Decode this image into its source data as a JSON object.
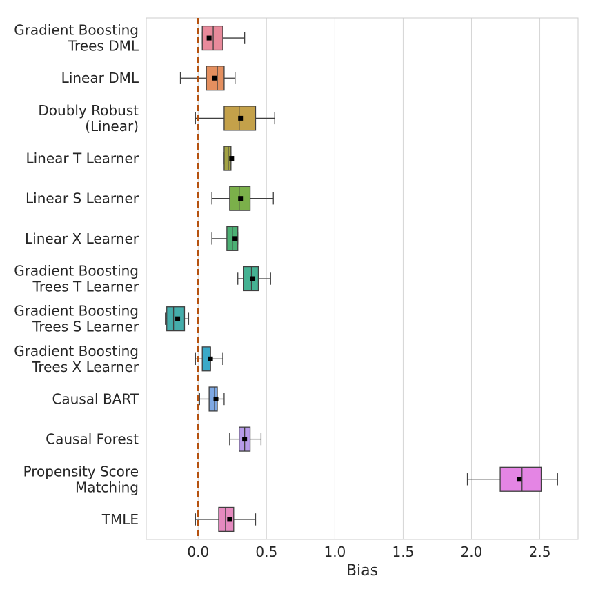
{
  "chart_data": {
    "type": "box",
    "orientation": "horizontal",
    "xlabel": "Bias",
    "ylabel": "",
    "xlim": [
      -0.38,
      2.78
    ],
    "xticks": [
      "0.0",
      "0.5",
      "1.0",
      "1.5",
      "2.0",
      "2.5"
    ],
    "xtick_values": [
      0.0,
      0.5,
      1.0,
      1.5,
      2.0,
      2.5
    ],
    "grid": "vertical",
    "reference_line": {
      "x": 0.0,
      "style": "dashed",
      "color": "#b5520f"
    },
    "series": [
      {
        "name": "Gradient Boosting Trees DML",
        "label_lines": [
          "Gradient Boosting",
          "Trees DML"
        ],
        "color": "#e88a9b",
        "whisker_low": 0.03,
        "q1": 0.03,
        "median": 0.11,
        "q3": 0.18,
        "whisker_high": 0.34,
        "mean": 0.08
      },
      {
        "name": "Linear DML",
        "label_lines": [
          "Linear DML"
        ],
        "color": "#e48f5f",
        "whisker_low": -0.13,
        "q1": 0.06,
        "median": 0.14,
        "q3": 0.19,
        "whisker_high": 0.27,
        "mean": 0.12
      },
      {
        "name": "Doubly Robust (Linear)",
        "label_lines": [
          "Doubly Robust",
          "(Linear)"
        ],
        "color": "#c4a14a",
        "whisker_low": -0.02,
        "q1": 0.19,
        "median": 0.3,
        "q3": 0.42,
        "whisker_high": 0.56,
        "mean": 0.31
      },
      {
        "name": "Linear T Learner",
        "label_lines": [
          "Linear T Learner"
        ],
        "color": "#a3a344",
        "whisker_low": 0.19,
        "q1": 0.19,
        "median": 0.22,
        "q3": 0.24,
        "whisker_high": 0.24,
        "mean": 0.245
      },
      {
        "name": "Linear S Learner",
        "label_lines": [
          "Linear S Learner"
        ],
        "color": "#7bb04a",
        "whisker_low": 0.1,
        "q1": 0.23,
        "median": 0.3,
        "q3": 0.38,
        "whisker_high": 0.55,
        "mean": 0.31
      },
      {
        "name": "Linear X Learner",
        "label_lines": [
          "Linear X Learner"
        ],
        "color": "#4cb074",
        "whisker_low": 0.1,
        "q1": 0.21,
        "median": 0.25,
        "q3": 0.29,
        "whisker_high": 0.29,
        "mean": 0.27
      },
      {
        "name": "Gradient Boosting Trees T Learner",
        "label_lines": [
          "Gradient Boosting",
          "Trees T Learner"
        ],
        "color": "#45b293",
        "whisker_low": 0.29,
        "q1": 0.33,
        "median": 0.39,
        "q3": 0.44,
        "whisker_high": 0.53,
        "mean": 0.4
      },
      {
        "name": "Gradient Boosting Trees S Learner",
        "label_lines": [
          "Gradient Boosting",
          "Trees S Learner"
        ],
        "color": "#45adab",
        "whisker_low": -0.24,
        "q1": -0.23,
        "median": -0.18,
        "q3": -0.1,
        "whisker_high": -0.07,
        "mean": -0.15
      },
      {
        "name": "Gradient Boosting Trees X Learner",
        "label_lines": [
          "Gradient Boosting",
          "Trees X Learner"
        ],
        "color": "#3aa9c8",
        "whisker_low": -0.02,
        "q1": 0.03,
        "median": 0.09,
        "q3": 0.09,
        "whisker_high": 0.18,
        "mean": 0.09
      },
      {
        "name": "Causal BART",
        "label_lines": [
          "Causal BART"
        ],
        "color": "#7ea8e3",
        "whisker_low": 0.01,
        "q1": 0.08,
        "median": 0.12,
        "q3": 0.14,
        "whisker_high": 0.19,
        "mean": 0.13
      },
      {
        "name": "Causal Forest",
        "label_lines": [
          "Causal Forest"
        ],
        "color": "#b79be9",
        "whisker_low": 0.23,
        "q1": 0.3,
        "median": 0.34,
        "q3": 0.38,
        "whisker_high": 0.46,
        "mean": 0.34
      },
      {
        "name": "Propensity Score Matching",
        "label_lines": [
          "Propensity Score",
          "Matching"
        ],
        "color": "#e485e4",
        "whisker_low": 1.97,
        "q1": 2.21,
        "median": 2.37,
        "q3": 2.51,
        "whisker_high": 2.63,
        "mean": 2.35
      },
      {
        "name": "TMLE",
        "label_lines": [
          "TMLE"
        ],
        "color": "#e58abf",
        "whisker_low": -0.02,
        "q1": 0.15,
        "median": 0.2,
        "q3": 0.26,
        "whisker_high": 0.42,
        "mean": 0.23
      }
    ]
  }
}
